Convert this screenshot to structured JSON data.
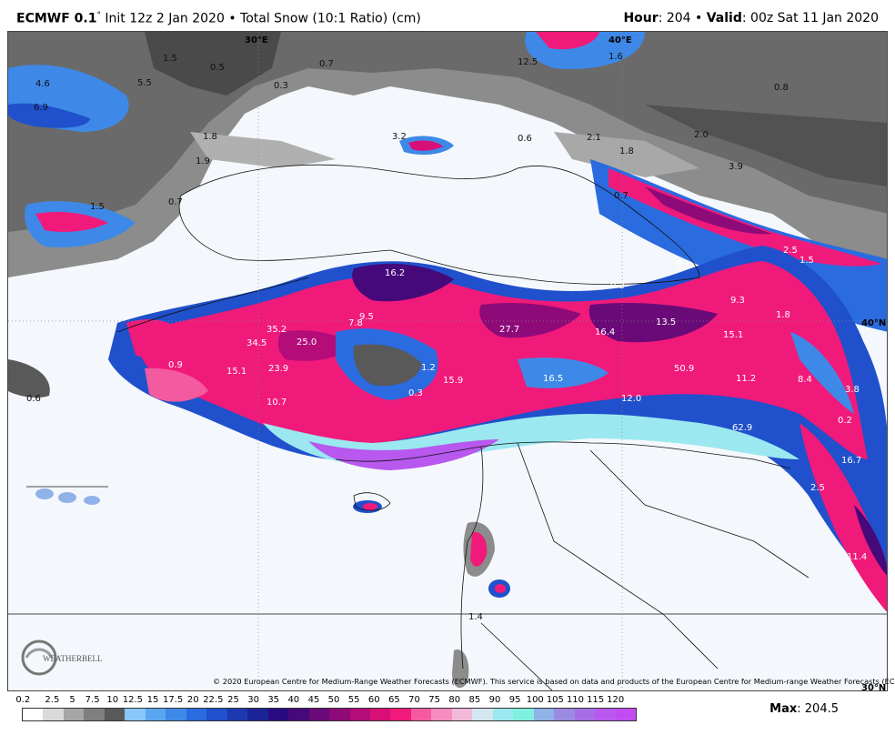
{
  "header": {
    "model": "ECMWF 0.1",
    "degree": "°",
    "init": " Init 12z 2 Jan 2020 • Total Snow (10:1 Ratio) (cm)",
    "hour_label": "Hour",
    "hour_value": ": 204 • ",
    "valid_label": "Valid",
    "valid_value": ": 00z Sat 11 Jan 2020"
  },
  "map": {
    "lon_labels": [
      "30°E",
      "40°E"
    ],
    "lat_labels": [
      "40°N",
      "30°N"
    ],
    "values": [
      "1.5",
      "0.5",
      "0.7",
      "4.6",
      "5.5",
      "6.9",
      "0.3",
      "1.8",
      "12.5",
      "1.6",
      "0.8",
      "3.2",
      "0.6",
      "2.1",
      "1.8",
      "2.0",
      "1.9",
      "3.9",
      "0.7",
      "0.7",
      "1.5",
      "16.2",
      "0.3",
      "0.1",
      "2.5",
      "9.3",
      "1.5",
      "1.8",
      "9.5",
      "7.8",
      "35.2",
      "34.5",
      "25.0",
      "27.7",
      "16.4",
      "13.5",
      "15.1",
      "0.9",
      "15.1",
      "23.9",
      "15.9",
      "16.5",
      "50.9",
      "11.2",
      "8.4",
      "3.8",
      "12.0",
      "10.7",
      "62.9",
      "0.2",
      "16.7",
      "2.5",
      "11.4",
      "0.6",
      "1.4",
      "0.3",
      "1.2"
    ],
    "copyright": "© 2020 European Centre for Medium-Range Weather Forecasts (ECMWF). This service is based on data and products of the European Centre for Medium-range Weather Forecasts (ECMWF).",
    "logo_text": "WEATHERBELL"
  },
  "legend": {
    "ticks": [
      "0.2",
      "2.5",
      "5",
      "7.5",
      "10",
      "12.5",
      "15",
      "17.5",
      "20",
      "22.5",
      "25",
      "30",
      "35",
      "40",
      "45",
      "50",
      "55",
      "60",
      "65",
      "70",
      "75",
      "80",
      "85",
      "90",
      "95",
      "100",
      "105",
      "110",
      "115",
      "120"
    ],
    "colors": [
      "#ffffff",
      "#d9d9d9",
      "#a6a6a6",
      "#7f7f7f",
      "#595959",
      "#89c7f8",
      "#5aa7f0",
      "#3e89e8",
      "#2a6be0",
      "#2050cc",
      "#1d39b0",
      "#1a2496",
      "#2a0a80",
      "#45097a",
      "#6a0a78",
      "#8e0a78",
      "#b40c78",
      "#d90f78",
      "#f01a7a",
      "#f45aa0",
      "#f58cc0",
      "#f2b8d8",
      "#d4e6f0",
      "#9be8f0",
      "#7ff0e0",
      "#8fb2e8",
      "#9a8ae0",
      "#a66ee6",
      "#b858ee",
      "#c34cf0"
    ],
    "max_label": "Max",
    "max_value": ": 204.5"
  }
}
